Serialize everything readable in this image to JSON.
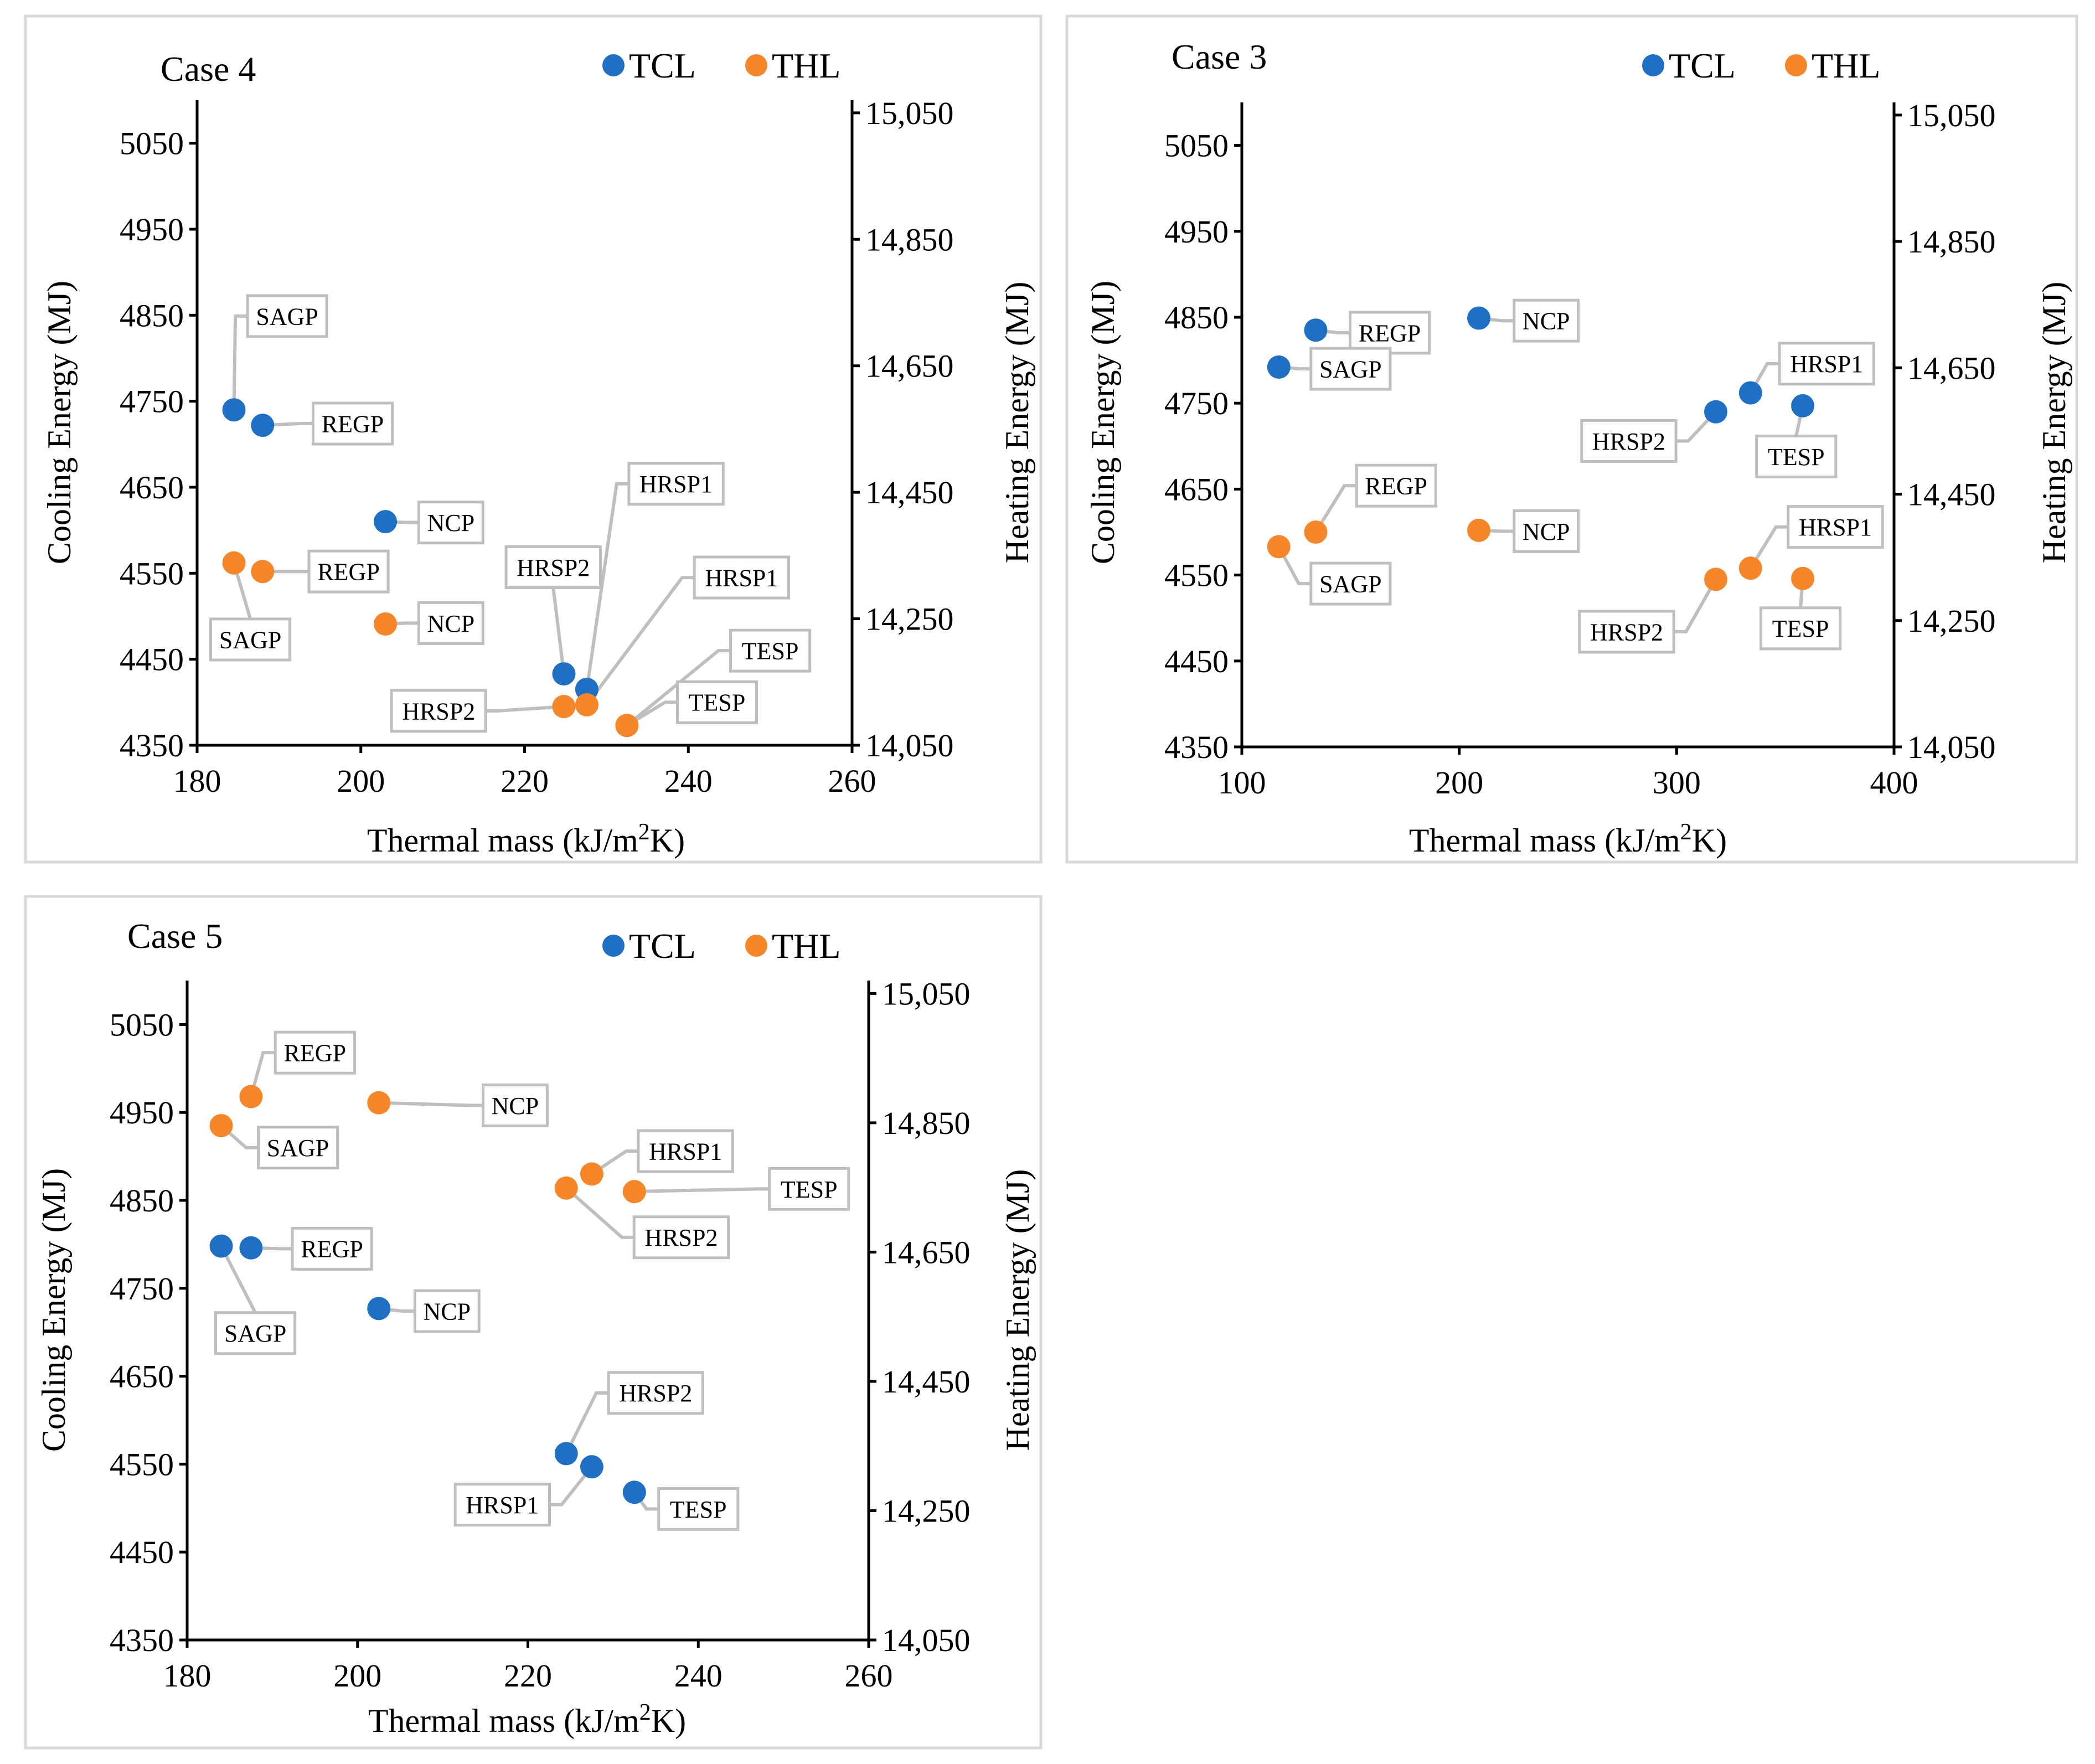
{
  "colors": {
    "TCL": "#1f6fc4",
    "THL": "#f5862a",
    "frame": "#d9d9d9",
    "leader": "#bfbfbf"
  },
  "chart_data": [
    {
      "type": "scatter",
      "title": "Case 4",
      "xlabel_prefix": "Thermal mass (kJ/m",
      "xlabel_sup": "2",
      "xlabel_suffix": "K)",
      "ylabel": "Cooling Energy (MJ)",
      "y2label": "Heating Energy (MJ)",
      "xlim": [
        180,
        260
      ],
      "ylim": [
        4350,
        5100
      ],
      "y2lim": [
        14050,
        15070
      ],
      "xticks": [
        180,
        200,
        220,
        240,
        260
      ],
      "xtick_labels": [
        "180",
        "200",
        "220",
        "240",
        "260"
      ],
      "yticks": [
        4350,
        4450,
        4550,
        4650,
        4750,
        4850,
        4950,
        5050
      ],
      "ytick_labels": [
        "4350",
        "4450",
        "4550",
        "4650",
        "4750",
        "4850",
        "4950",
        "5050"
      ],
      "y2ticks": [
        14050,
        14250,
        14450,
        14650,
        14850,
        15050
      ],
      "y2tick_labels": [
        "14,050",
        "14,250",
        "14,450",
        "14,650",
        "14,850",
        "15,050"
      ],
      "legend": [
        "TCL",
        "THL"
      ],
      "series": [
        {
          "name": "TCL",
          "points": [
            {
              "label": "SAGP",
              "x": 184.5,
              "y": 4740,
              "lx": 191,
              "ly": 4849
            },
            {
              "label": "REGP",
              "x": 188,
              "y": 4722,
              "lx": 199,
              "ly": 4724
            },
            {
              "label": "NCP",
              "x": 203,
              "y": 4610,
              "lx": 211,
              "ly": 4609
            },
            {
              "label": "HRSP2",
              "x": 224.8,
              "y": 4433,
              "lx": 223.5,
              "ly": 4557
            },
            {
              "label": "HRSP1",
              "x": 227.6,
              "y": 4415,
              "lx": 238.5,
              "ly": 4654
            }
          ]
        },
        {
          "name": "THL",
          "points": [
            {
              "label": "SAGP",
              "x": 184.5,
              "y": 4562,
              "lx": 186.5,
              "ly": 4473
            },
            {
              "label": "REGP",
              "x": 188,
              "y": 4552,
              "lx": 198.5,
              "ly": 4552
            },
            {
              "label": "NCP",
              "x": 203,
              "y": 4491,
              "lx": 211,
              "ly": 4492
            },
            {
              "label": "HRSP2",
              "x": 224.8,
              "y": 4395,
              "lx": 209.5,
              "ly": 4390
            },
            {
              "label": "HRSP1",
              "x": 227.6,
              "y": 4397,
              "lx": 246.5,
              "ly": 4545
            },
            {
              "label": "TESP",
              "x": 232.5,
              "y": 4373,
              "lx": 250,
              "ly": 4460
            },
            {
              "label": "TESP",
              "x": 232.5,
              "y": 4373,
              "lx": 243.5,
              "ly": 4400
            }
          ]
        }
      ]
    },
    {
      "type": "scatter",
      "title": "Case 3",
      "xlabel_prefix": "Thermal mass (kJ/m",
      "xlabel_sup": "2",
      "xlabel_suffix": "K)",
      "ylabel": "Cooling Energy (MJ)",
      "y2label": "Heating Energy (MJ)",
      "xlim": [
        100,
        400
      ],
      "ylim": [
        4350,
        5100
      ],
      "y2lim": [
        14050,
        15070
      ],
      "xticks": [
        100,
        200,
        300,
        400
      ],
      "xtick_labels": [
        "100",
        "200",
        "300",
        "400"
      ],
      "yticks": [
        4350,
        4450,
        4550,
        4650,
        4750,
        4850,
        4950,
        5050
      ],
      "ytick_labels": [
        "4350",
        "4450",
        "4550",
        "4650",
        "4750",
        "4850",
        "4950",
        "5050"
      ],
      "y2ticks": [
        14050,
        14250,
        14450,
        14650,
        14850,
        15050
      ],
      "y2tick_labels": [
        "14,050",
        "14,250",
        "14,450",
        "14,650",
        "14,850",
        "15,050"
      ],
      "legend": [
        "TCL",
        "THL"
      ],
      "series": [
        {
          "name": "TCL",
          "points": [
            {
              "label": "REGP",
              "x": 134,
              "y": 4835,
              "lx": 168,
              "ly": 4832
            },
            {
              "label": "SAGP",
              "x": 117,
              "y": 4792,
              "lx": 150,
              "ly": 4790
            },
            {
              "label": "NCP",
              "x": 209,
              "y": 4849,
              "lx": 240,
              "ly": 4846
            },
            {
              "label": "HRSP1",
              "x": 334,
              "y": 4762,
              "lx": 369,
              "ly": 4796
            },
            {
              "label": "HRSP2",
              "x": 318,
              "y": 4740,
              "lx": 278,
              "ly": 4706
            },
            {
              "label": "TESP",
              "x": 358,
              "y": 4747,
              "lx": 355,
              "ly": 4688
            }
          ]
        },
        {
          "name": "THL",
          "points": [
            {
              "label": "REGP",
              "x": 134,
              "y": 4600,
              "lx": 171,
              "ly": 4654
            },
            {
              "label": "SAGP",
              "x": 117,
              "y": 4583,
              "lx": 150,
              "ly": 4540
            },
            {
              "label": "NCP",
              "x": 209,
              "y": 4602,
              "lx": 240,
              "ly": 4601
            },
            {
              "label": "HRSP1",
              "x": 334,
              "y": 4558,
              "lx": 373,
              "ly": 4606
            },
            {
              "label": "HRSP2",
              "x": 318,
              "y": 4545,
              "lx": 277,
              "ly": 4484
            },
            {
              "label": "TESP",
              "x": 358,
              "y": 4546,
              "lx": 357,
              "ly": 4488
            }
          ]
        }
      ]
    },
    {
      "type": "scatter",
      "title": "Case 5",
      "xlabel_prefix": "Thermal mass (kJ/m",
      "xlabel_sup": "2",
      "xlabel_suffix": "K)",
      "ylabel": "Cooling Energy (MJ)",
      "y2label": "Heating Energy (MJ)",
      "xlim": [
        180,
        260
      ],
      "ylim": [
        4350,
        5100
      ],
      "y2lim": [
        14050,
        15070
      ],
      "xticks": [
        180,
        200,
        220,
        240,
        260
      ],
      "xtick_labels": [
        "180",
        "200",
        "220",
        "240",
        "260"
      ],
      "yticks": [
        4350,
        4450,
        4550,
        4650,
        4750,
        4850,
        4950,
        5050
      ],
      "ytick_labels": [
        "4350",
        "4450",
        "4550",
        "4650",
        "4750",
        "4850",
        "4950",
        "5050"
      ],
      "y2ticks": [
        14050,
        14250,
        14450,
        14650,
        14850,
        15050
      ],
      "y2tick_labels": [
        "14,050",
        "14,250",
        "14,450",
        "14,650",
        "14,850",
        "15,050"
      ],
      "legend": [
        "TCL",
        "THL"
      ],
      "series": [
        {
          "name": "TCL",
          "points": [
            {
              "label": "SAGP",
              "x": 184,
              "y": 4798,
              "lx": 188,
              "ly": 4699
            },
            {
              "label": "REGP",
              "x": 187.5,
              "y": 4796,
              "lx": 197,
              "ly": 4795
            },
            {
              "label": "NCP",
              "x": 202.5,
              "y": 4727,
              "lx": 210.5,
              "ly": 4724
            },
            {
              "label": "HRSP2",
              "x": 224.5,
              "y": 4562,
              "lx": 235,
              "ly": 4631
            },
            {
              "label": "HRSP1",
              "x": 227.5,
              "y": 4547,
              "lx": 217,
              "ly": 4504
            },
            {
              "label": "TESP",
              "x": 232.5,
              "y": 4518,
              "lx": 240,
              "ly": 4499
            }
          ]
        },
        {
          "name": "THL",
          "points": [
            {
              "label": "REGP",
              "x": 187.5,
              "y": 4968,
              "lx": 195,
              "ly": 5018
            },
            {
              "label": "SAGP",
              "x": 184,
              "y": 4935,
              "lx": 193,
              "ly": 4910
            },
            {
              "label": "NCP",
              "x": 202.5,
              "y": 4961,
              "lx": 218.5,
              "ly": 4958
            },
            {
              "label": "HRSP1",
              "x": 227.5,
              "y": 4880,
              "lx": 238.5,
              "ly": 4906
            },
            {
              "label": "HRSP2",
              "x": 224.5,
              "y": 4864,
              "lx": 238,
              "ly": 4808
            },
            {
              "label": "TESP",
              "x": 232.5,
              "y": 4860,
              "lx": 253,
              "ly": 4863
            }
          ]
        }
      ]
    }
  ]
}
